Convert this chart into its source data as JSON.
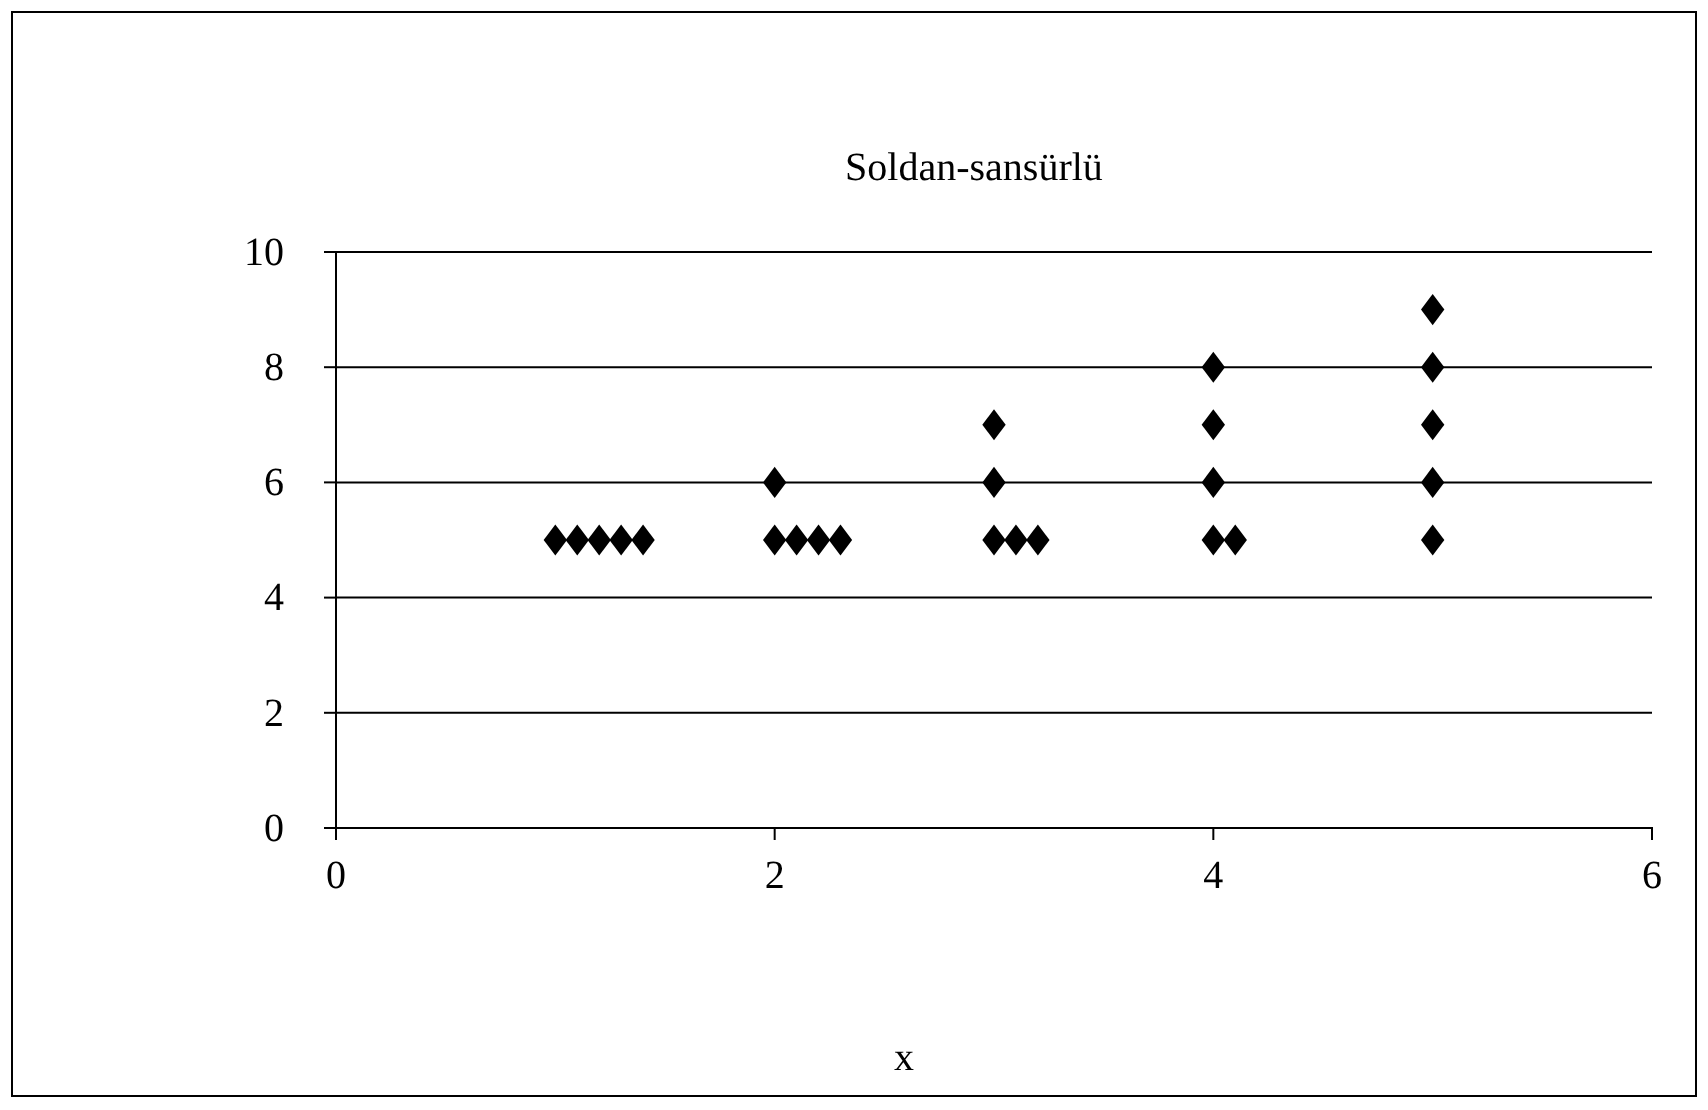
{
  "chart_data": {
    "type": "scatter",
    "title": "Soldan-sansürlü",
    "xlabel": "x",
    "x": [
      1,
      1.1,
      1.2,
      1.3,
      1.4,
      2,
      2,
      2.1,
      2.2,
      2.3,
      3,
      3,
      3,
      3.1,
      3.2,
      4,
      4,
      4,
      4,
      4.1,
      5,
      5,
      5,
      5,
      5
    ],
    "values": [
      5,
      5,
      5,
      5,
      5,
      6,
      5,
      5,
      5,
      5,
      7,
      6,
      5,
      5,
      5,
      8,
      7,
      6,
      5,
      5,
      9,
      8,
      7,
      6,
      5
    ],
    "color": "#000000",
    "marker": "diamond",
    "xlim": [
      0,
      6
    ],
    "xticks": [
      0,
      2,
      4,
      6
    ],
    "ylim": [
      0,
      10
    ],
    "yticks": [
      0,
      2,
      4,
      6,
      8,
      10
    ],
    "grid": "y"
  }
}
